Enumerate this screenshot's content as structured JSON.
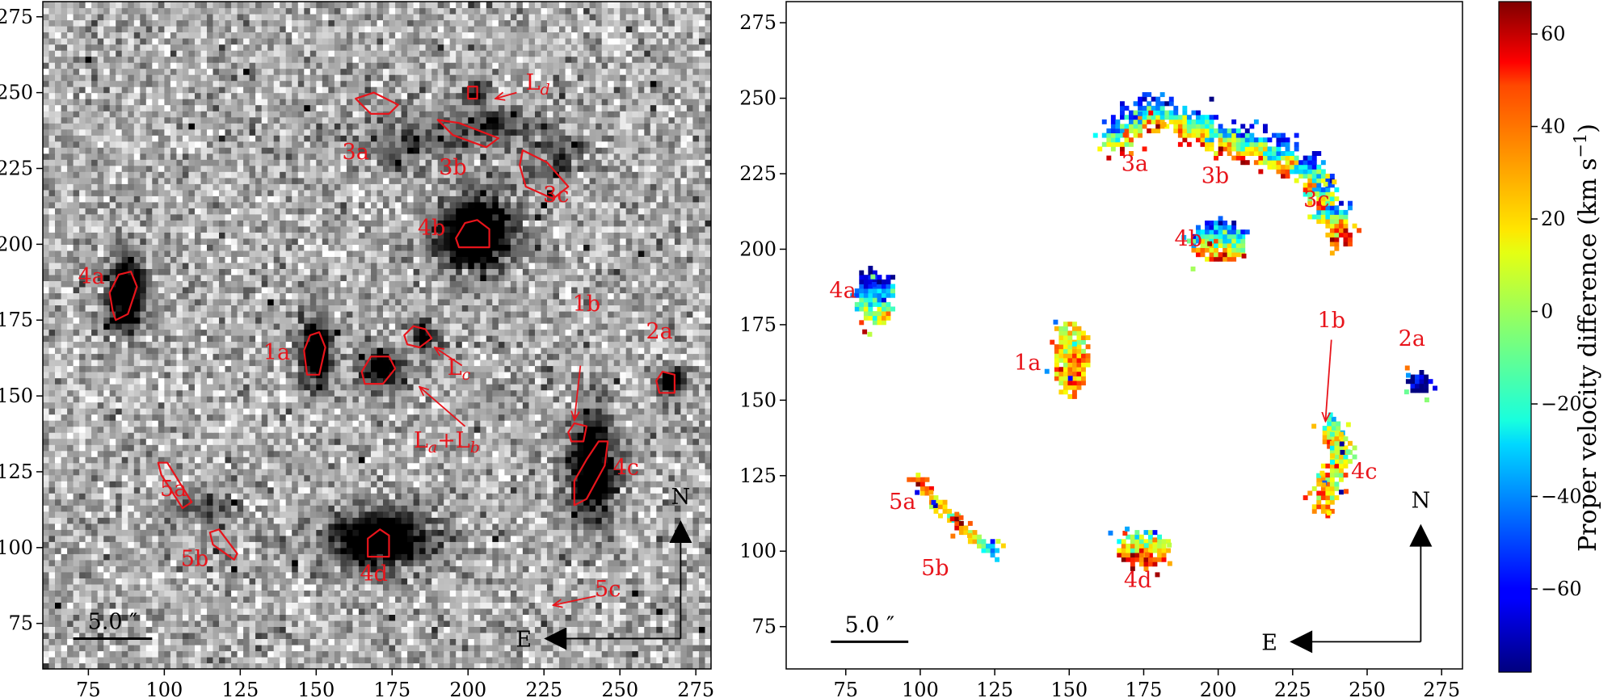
{
  "chart_data": [
    {
      "type": "heatmap",
      "panel": "left",
      "xlim": [
        60,
        280
      ],
      "ylim": [
        60,
        280
      ],
      "xticks": [
        75,
        100,
        125,
        150,
        175,
        200,
        225,
        250,
        275
      ],
      "yticks": [
        75,
        100,
        125,
        150,
        175,
        200,
        225,
        250,
        275
      ],
      "colormap": "grayscale-inverted",
      "sources": [
        {
          "x": 86,
          "y": 183,
          "amp": 1.0,
          "sx": 4,
          "sy": 8
        },
        {
          "x": 149,
          "y": 164,
          "amp": 1.0,
          "sx": 3.5,
          "sy": 7
        },
        {
          "x": 171,
          "y": 158,
          "amp": 0.9,
          "sx": 4.5,
          "sy": 4
        },
        {
          "x": 184,
          "y": 169,
          "amp": 0.7,
          "sx": 3,
          "sy": 3
        },
        {
          "x": 202,
          "y": 203,
          "amp": 1.0,
          "sx": 9,
          "sy": 8
        },
        {
          "x": 170,
          "y": 102,
          "amp": 1.0,
          "sx": 11,
          "sy": 6
        },
        {
          "x": 240,
          "y": 125,
          "amp": 1.0,
          "sx": 5,
          "sy": 11
        },
        {
          "x": 266,
          "y": 154,
          "amp": 0.8,
          "sx": 3,
          "sy": 3
        },
        {
          "x": 201,
          "y": 249,
          "amp": 0.7,
          "sx": 2.5,
          "sy": 2.5
        },
        {
          "x": 205,
          "y": 238,
          "amp": 0.35,
          "sx": 12,
          "sy": 4
        },
        {
          "x": 176,
          "y": 233,
          "amp": 0.25,
          "sx": 14,
          "sy": 6
        },
        {
          "x": 230,
          "y": 228,
          "amp": 0.3,
          "sx": 8,
          "sy": 6
        },
        {
          "x": 112,
          "y": 112,
          "amp": 0.35,
          "sx": 8,
          "sy": 3
        }
      ],
      "contours": [
        {
          "name": "4a",
          "points": [
            [
              84,
              175
            ],
            [
              88,
              177
            ],
            [
              91,
              186
            ],
            [
              89,
              191
            ],
            [
              85,
              190
            ],
            [
              82,
              184
            ],
            [
              83,
              178
            ]
          ]
        },
        {
          "name": "1a",
          "points": [
            [
              147,
              157
            ],
            [
              151,
              157
            ],
            [
              153,
              166
            ],
            [
              151,
              171
            ],
            [
              148,
              170
            ],
            [
              146,
              165
            ]
          ]
        },
        {
          "name": "La+Lb",
          "points": [
            [
              166,
              154
            ],
            [
              172,
              154
            ],
            [
              176,
              159
            ],
            [
              174,
              163
            ],
            [
              168,
              163
            ],
            [
              165,
              158
            ]
          ]
        },
        {
          "name": "Lc",
          "points": [
            [
              180,
              167
            ],
            [
              184,
              166
            ],
            [
              188,
              169
            ],
            [
              186,
              172
            ],
            [
              182,
              173
            ],
            [
              179,
              170
            ]
          ]
        },
        {
          "name": "4b",
          "points": [
            [
              197,
              199
            ],
            [
              207,
              199
            ],
            [
              207,
              205
            ],
            [
              203,
              208
            ],
            [
              199,
              207
            ],
            [
              196,
              202
            ]
          ]
        },
        {
          "name": "Ld",
          "points": [
            [
              200,
              248
            ],
            [
              203,
              248
            ],
            [
              203,
              252
            ],
            [
              200,
              252
            ]
          ]
        },
        {
          "name": "3a",
          "points": [
            [
              163,
              248
            ],
            [
              169,
              250
            ],
            [
              177,
              246
            ],
            [
              174,
              243
            ],
            [
              168,
              243
            ]
          ]
        },
        {
          "name": "3b",
          "points": [
            [
              190,
              241
            ],
            [
              197,
              240
            ],
            [
              210,
              235
            ],
            [
              206,
              232
            ],
            [
              195,
              236
            ]
          ]
        },
        {
          "name": "3c",
          "points": [
            [
              218,
              231
            ],
            [
              226,
              227
            ],
            [
              233,
              219
            ],
            [
              228,
              215
            ],
            [
              219,
              219
            ],
            [
              217,
              226
            ]
          ]
        },
        {
          "name": "2a",
          "points": [
            [
              263,
              151
            ],
            [
              268,
              151
            ],
            [
              268,
              157
            ],
            [
              264,
              158
            ],
            [
              262,
              155
            ]
          ]
        },
        {
          "name": "1b",
          "points": [
            [
              234,
              135
            ],
            [
              238,
              135
            ],
            [
              239,
              140
            ],
            [
              235,
              141
            ],
            [
              233,
              138
            ]
          ]
        },
        {
          "name": "4c",
          "points": [
            [
              235,
              114
            ],
            [
              239,
              116
            ],
            [
              245,
              127
            ],
            [
              246,
              135
            ],
            [
              243,
              135
            ],
            [
              239,
              129
            ],
            [
              235,
              122
            ]
          ]
        },
        {
          "name": "4d",
          "points": [
            [
              167,
              97
            ],
            [
              174,
              97
            ],
            [
              174,
              104
            ],
            [
              171,
              106
            ],
            [
              167,
              103
            ]
          ]
        },
        {
          "name": "5a",
          "points": [
            [
              98,
              128
            ],
            [
              101,
              128
            ],
            [
              109,
              115
            ],
            [
              106,
              113
            ],
            [
              99,
              124
            ]
          ]
        },
        {
          "name": "5b",
          "points": [
            [
              115,
              105
            ],
            [
              118,
              106
            ],
            [
              124,
              98
            ],
            [
              123,
              96
            ],
            [
              116,
              101
            ]
          ]
        }
      ],
      "labels": [
        {
          "text": "4a",
          "x": 76,
          "y": 187
        },
        {
          "text": "1a",
          "x": 137,
          "y": 162
        },
        {
          "text": "3a",
          "x": 163,
          "y": 228
        },
        {
          "text": "3b",
          "x": 195,
          "y": 223
        },
        {
          "text": "3c",
          "x": 229,
          "y": 214
        },
        {
          "text": "4b",
          "x": 188,
          "y": 203
        },
        {
          "text": "1b",
          "x": 239,
          "y": 178
        },
        {
          "text": "2a",
          "x": 263,
          "y": 169
        },
        {
          "text": "4c",
          "x": 252,
          "y": 124
        },
        {
          "text": "5a",
          "x": 103,
          "y": 117
        },
        {
          "text": "5b",
          "x": 110,
          "y": 94
        },
        {
          "text": "4d",
          "x": 169,
          "y": 89
        },
        {
          "text": "5c",
          "x": 246,
          "y": 84
        }
      ],
      "arrow_labels": [
        {
          "base": "L",
          "sub": "d",
          "x": 223,
          "y": 251,
          "arrow_from": [
            216,
            250
          ],
          "arrow_to": [
            209,
            248
          ]
        },
        {
          "base": "L",
          "sub": "c",
          "x": 197,
          "y": 157,
          "arrow_from": [
            198,
            160
          ],
          "arrow_to": [
            189,
            166
          ]
        },
        {
          "base": "L",
          "sub": "a",
          "plus": "+L",
          "sub2": "b",
          "x": 193,
          "y": 133,
          "arrow_from": [
            199,
            140
          ],
          "arrow_to": [
            184,
            153
          ]
        },
        {
          "base": "",
          "sub": "",
          "x": 0,
          "y": 0,
          "arrow_from": [
            237,
            160
          ],
          "arrow_to": [
            235,
            142
          ]
        },
        {
          "base": "",
          "sub": "",
          "x": 0,
          "y": 0,
          "arrow_from": [
            242,
            84
          ],
          "arrow_to": [
            228,
            81
          ]
        }
      ],
      "scalebar": {
        "label": "5.0 ″",
        "x_from": 70,
        "x_to": 96,
        "y": 70
      },
      "compass": {
        "north": "N",
        "east": "E",
        "origin": [
          270,
          70
        ],
        "north_to": [
          270,
          109
        ],
        "east_to": [
          225,
          70
        ]
      }
    },
    {
      "type": "heatmap",
      "panel": "right",
      "xlim": [
        55,
        282
      ],
      "ylim": [
        61,
        282
      ],
      "xticks": [
        75,
        100,
        125,
        150,
        175,
        200,
        225,
        250,
        275
      ],
      "yticks": [
        75,
        100,
        125,
        150,
        175,
        200,
        225,
        250,
        275
      ],
      "colormap": "jet",
      "clim": [
        -78,
        67
      ],
      "regions": [
        {
          "name": "4a",
          "shape": "blob",
          "x": 84,
          "y": 183,
          "rx": 7,
          "ry": 9,
          "vtop": -75,
          "vbottom": 25
        },
        {
          "name": "1a",
          "shape": "blob",
          "x": 150,
          "y": 163,
          "rx": 6,
          "ry": 12,
          "vtop": 10,
          "vbottom": 30
        },
        {
          "name": "4b",
          "shape": "blob",
          "x": 200,
          "y": 202,
          "rx": 10,
          "ry": 7,
          "vtop": -65,
          "vbottom": 45
        },
        {
          "name": "2a",
          "shape": "blob",
          "x": 267,
          "y": 155,
          "rx": 3.5,
          "ry": 3.5,
          "vtop": -78,
          "vbottom": -70
        },
        {
          "name": "4d",
          "shape": "blob",
          "x": 174,
          "y": 100,
          "rx": 9,
          "ry": 6,
          "vtop": -20,
          "vbottom": 50
        },
        {
          "name": "1b",
          "shape": "blob",
          "x": 238,
          "y": 138,
          "rx": 4,
          "ry": 5,
          "vtop": -25,
          "vbottom": 35
        },
        {
          "name": "4c",
          "shape": "line",
          "x1": 234,
          "y1": 115,
          "x2": 241,
          "y2": 134,
          "width": 3.5,
          "vtop": 5,
          "vbottom": 25
        },
        {
          "name": "5a",
          "shape": "line",
          "x1": 98,
          "y1": 123,
          "x2": 111,
          "y2": 109,
          "width": 2,
          "vtop": 0,
          "vbottom": 40
        },
        {
          "name": "5b",
          "shape": "line",
          "x1": 111,
          "y1": 109,
          "x2": 124,
          "y2": 99,
          "width": 2,
          "vtop": -40,
          "vbottom": 55
        },
        {
          "name": "3",
          "shape": "arc",
          "points": [
            [
              165,
              236
            ],
            [
              170,
              240
            ],
            [
              176,
              244
            ],
            [
              184,
              243
            ],
            [
              192,
              240
            ],
            [
              200,
              236
            ],
            [
              210,
              234
            ],
            [
              220,
              230
            ],
            [
              230,
              224
            ],
            [
              235,
              217
            ],
            [
              238,
              210
            ],
            [
              240,
              205
            ]
          ],
          "width": 5,
          "vtop": -60,
          "vbottom": 40
        }
      ],
      "labels": [
        {
          "text": "4a",
          "x": 74,
          "y": 184
        },
        {
          "text": "1a",
          "x": 136,
          "y": 160
        },
        {
          "text": "3a",
          "x": 172,
          "y": 226
        },
        {
          "text": "3b",
          "x": 199,
          "y": 222
        },
        {
          "text": "3c",
          "x": 233,
          "y": 214
        },
        {
          "text": "4b",
          "x": 190,
          "y": 201
        },
        {
          "text": "1b",
          "x": 238,
          "y": 174
        },
        {
          "text": "2a",
          "x": 265,
          "y": 168
        },
        {
          "text": "4c",
          "x": 249,
          "y": 124
        },
        {
          "text": "5a",
          "x": 94,
          "y": 114
        },
        {
          "text": "5b",
          "x": 105,
          "y": 92
        },
        {
          "text": "4d",
          "x": 173,
          "y": 88
        }
      ],
      "arrow": {
        "from": [
          238,
          170
        ],
        "to": [
          236,
          143
        ]
      },
      "scalebar": {
        "label": "5.0 ″",
        "x_from": 70,
        "x_to": 96,
        "y": 70
      },
      "compass": {
        "north": "N",
        "east": "E",
        "origin": [
          268,
          70
        ],
        "north_to": [
          268,
          109
        ],
        "east_to": [
          224,
          70
        ]
      }
    }
  ],
  "colorbar": {
    "label": "Proper velocity difference (km s",
    "label_sup": "−1",
    "label_close": ")",
    "vmin": -78,
    "vmax": 67,
    "ticks": [
      {
        "value": 60,
        "label": "60"
      },
      {
        "value": 40,
        "label": "40"
      },
      {
        "value": 20,
        "label": "20"
      },
      {
        "value": 0,
        "label": "0"
      },
      {
        "value": -20,
        "label": "−20"
      },
      {
        "value": -40,
        "label": "−40"
      },
      {
        "value": -60,
        "label": "−60"
      }
    ]
  },
  "colors": {
    "contour": "#e8141b",
    "label": "#e8141b"
  }
}
